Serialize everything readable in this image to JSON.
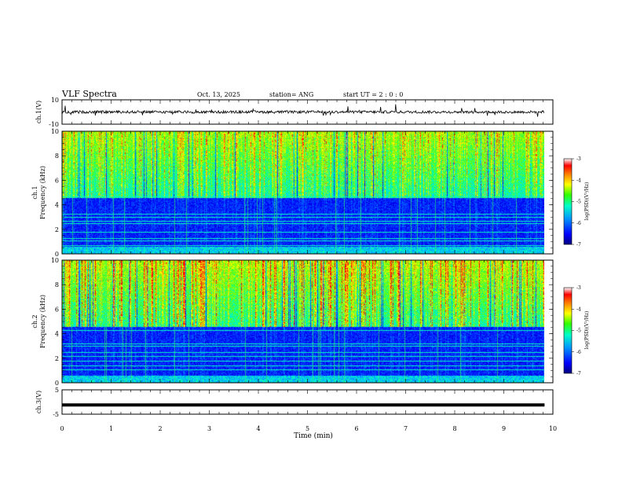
{
  "header": {
    "title": "VLF Spectra",
    "date": "Oct. 13, 2025",
    "station": "station= ANG",
    "start_ut": "start  UT =   2 : 0  : 0"
  },
  "colors": {
    "trace": "#000000",
    "colormap": [
      "#00007f",
      "#0000ff",
      "#0064ff",
      "#00c8ff",
      "#00ffb4",
      "#64ff00",
      "#ffff00",
      "#ff9600",
      "#ff0000",
      "#ffffff"
    ]
  },
  "chart_data": [
    {
      "id": "ch1-waveform",
      "type": "line",
      "ylabel": "ch.1(V)",
      "xlim": [
        0,
        10
      ],
      "ylim": [
        -10,
        10
      ],
      "ytick_labels": [
        "10",
        "-10"
      ],
      "baseline": 0,
      "x_end": 9.83
    },
    {
      "id": "ch1-spectrogram",
      "type": "heatmap",
      "ylabel": "ch.1\nFrequency  (kHz)",
      "xlim": [
        0,
        10
      ],
      "ylim": [
        0,
        10
      ],
      "ytick_labels": [
        "0",
        "2",
        "4",
        "6",
        "8",
        "10"
      ],
      "colorbar": {
        "label": "log(PSD)(V²/Hz)",
        "range": [
          -7,
          -3
        ],
        "tick_labels": [
          "-3",
          "-4",
          "-5",
          "-6",
          "-7"
        ]
      },
      "line_frequencies_khz": [
        0.7,
        1.1,
        1.3,
        1.8,
        2.5,
        2.7,
        3.0,
        3.3,
        4.7
      ]
    },
    {
      "id": "ch2-spectrogram",
      "type": "heatmap",
      "ylabel": "ch.2\nFrequency  (kHz)",
      "xlim": [
        0,
        10
      ],
      "ylim": [
        0,
        10
      ],
      "ytick_labels": [
        "0",
        "2",
        "4",
        "6",
        "8",
        "10"
      ],
      "colorbar": {
        "label": "log(PSD)(V²/Hz)",
        "range": [
          -7,
          -3
        ],
        "tick_labels": [
          "-3",
          "-4",
          "-5",
          "-6",
          "-7"
        ]
      },
      "line_frequencies_khz": [
        1.1,
        1.4,
        1.8,
        2.2,
        2.5,
        3.0,
        3.2,
        4.3
      ]
    },
    {
      "id": "ch3-waveform",
      "type": "line",
      "ylabel": "ch.3(V)",
      "xlim": [
        0,
        10
      ],
      "ylim": [
        -5,
        5
      ],
      "ytick_labels": [
        "5",
        "-5"
      ],
      "level": -1.2,
      "x_end": 9.83
    }
  ],
  "xaxis": {
    "label": "Time  (min)",
    "tick_labels": [
      "0",
      "1",
      "2",
      "3",
      "4",
      "5",
      "6",
      "7",
      "8",
      "9",
      "10"
    ]
  }
}
